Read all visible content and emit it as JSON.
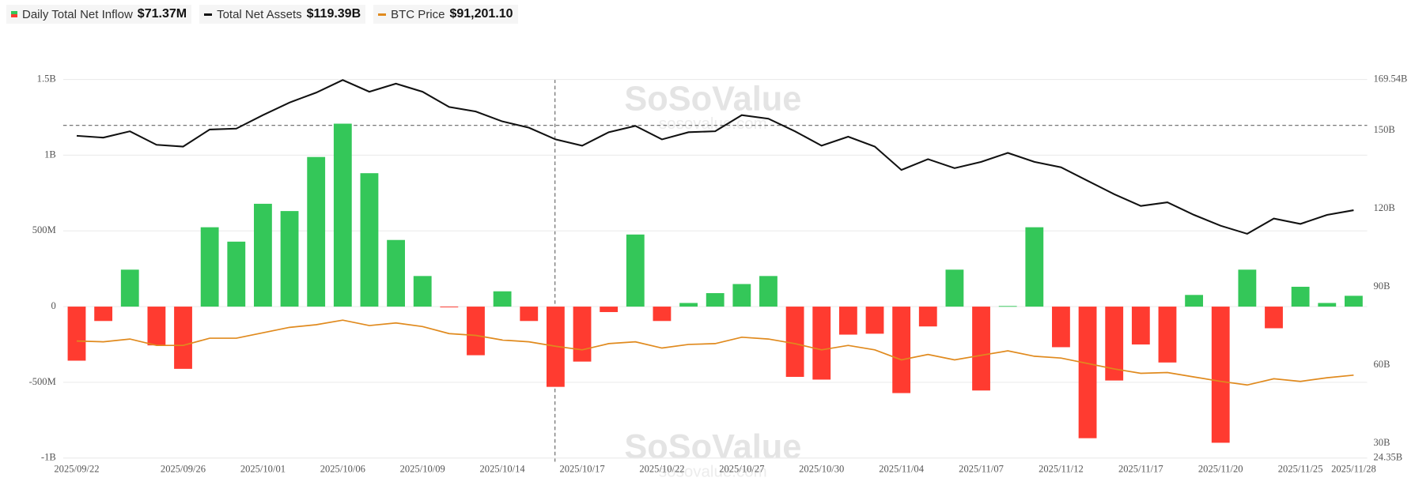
{
  "chart_data": {
    "type": "bar",
    "watermark": "SoSoValue",
    "watermark_sub": "sosovalue.com",
    "categories": [
      "2025/09/22",
      null,
      null,
      null,
      "2025/09/26",
      null,
      null,
      "2025/10/01",
      null,
      null,
      "2025/10/06",
      null,
      null,
      "2025/10/09",
      null,
      null,
      "2025/10/14",
      null,
      null,
      "2025/10/17",
      null,
      null,
      "2025/10/22",
      null,
      null,
      "2025/10/27",
      null,
      null,
      "2025/10/30",
      null,
      null,
      "2025/11/04",
      null,
      null,
      "2025/11/07",
      null,
      null,
      "2025/11/12",
      null,
      null,
      "2025/11/17",
      null,
      null,
      "2025/11/20",
      null,
      null,
      "2025/11/25",
      null,
      "2025/11/28"
    ],
    "ylim": [
      -1000000000,
      1500000000
    ],
    "yticks": [
      {
        "value": -1000000000,
        "label": "-1B"
      },
      {
        "value": -500000000,
        "label": "-500M"
      },
      0,
      {
        "value": 500000000,
        "label": "500M"
      },
      {
        "value": 1000000000,
        "label": "1B"
      },
      {
        "value": 1500000000,
        "label": "1.5B"
      }
    ],
    "y2lim": [
      24.35,
      169.54
    ],
    "y2ticks": [
      {
        "value": 24.35,
        "label": "24.35B"
      },
      {
        "value": 30,
        "label": "30B"
      },
      {
        "value": 60,
        "label": "60B"
      },
      {
        "value": 90,
        "label": "90B"
      },
      {
        "value": 120,
        "label": "120B"
      },
      {
        "value": 150,
        "label": "150B"
      },
      {
        "value": 169.54,
        "label": "169.54B"
      }
    ],
    "y3lim": [
      40700,
      271300
    ],
    "grid": true,
    "series": [
      {
        "name": "Daily Total Net Inflow",
        "type": "bar",
        "legend_value": "$71.37M",
        "positive_color": "#34c759",
        "negative_color": "#ff3b30",
        "values": [
          -357000000,
          -95000000,
          244000000,
          -256000000,
          -411000000,
          524000000,
          429000000,
          679000000,
          631000000,
          988000000,
          1208000000,
          881000000,
          440000000,
          202000000,
          -5000000,
          -321000000,
          101000000,
          -95000000,
          -530000000,
          -363000000,
          -36000000,
          476000000,
          -95000000,
          24000000,
          89000000,
          149000000,
          202000000,
          -464000000,
          -482000000,
          -185000000,
          -179000000,
          -571000000,
          -131000000,
          244000000,
          -554000000,
          4000000,
          524000000,
          -268000000,
          -869000000,
          -488000000,
          -250000000,
          -369000000,
          77000000,
          -899000000,
          244000000,
          -143000000,
          131000000,
          24000000,
          71370000
        ]
      },
      {
        "name": "Total Net Assets",
        "type": "line",
        "axis": "y2",
        "legend_value": "$119.39B",
        "color": "#111111",
        "values": [
          147.93,
          147.24,
          149.66,
          144.48,
          143.79,
          150.34,
          150.69,
          155.86,
          160.69,
          164.48,
          169.31,
          164.83,
          167.93,
          164.83,
          158.97,
          157.24,
          153.45,
          151.03,
          146.55,
          144.14,
          149.31,
          151.72,
          146.55,
          149.31,
          149.66,
          155.86,
          154.48,
          149.66,
          144.14,
          147.59,
          143.79,
          134.83,
          138.97,
          135.52,
          137.93,
          141.38,
          137.93,
          135.86,
          130.69,
          125.52,
          121.03,
          122.41,
          117.59,
          113.45,
          110.34,
          116.21,
          114.14,
          117.59,
          119.39
        ]
      },
      {
        "name": "BTC Price",
        "type": "line",
        "axis": "y3",
        "legend_value": "$91,201.10",
        "color": "#e08a1e",
        "values": [
          112000,
          111500,
          113200,
          109300,
          109300,
          113700,
          113700,
          117000,
          120300,
          121900,
          124700,
          121400,
          123000,
          120800,
          116500,
          115400,
          112600,
          111500,
          108800,
          106600,
          110400,
          111500,
          107700,
          109900,
          110400,
          114300,
          113200,
          110400,
          106600,
          109300,
          106600,
          100500,
          103800,
          100500,
          103300,
          106000,
          102700,
          101600,
          98300,
          95000,
          92300,
          92800,
          90100,
          87400,
          85200,
          89000,
          87400,
          89600,
          91201.1
        ]
      }
    ]
  }
}
